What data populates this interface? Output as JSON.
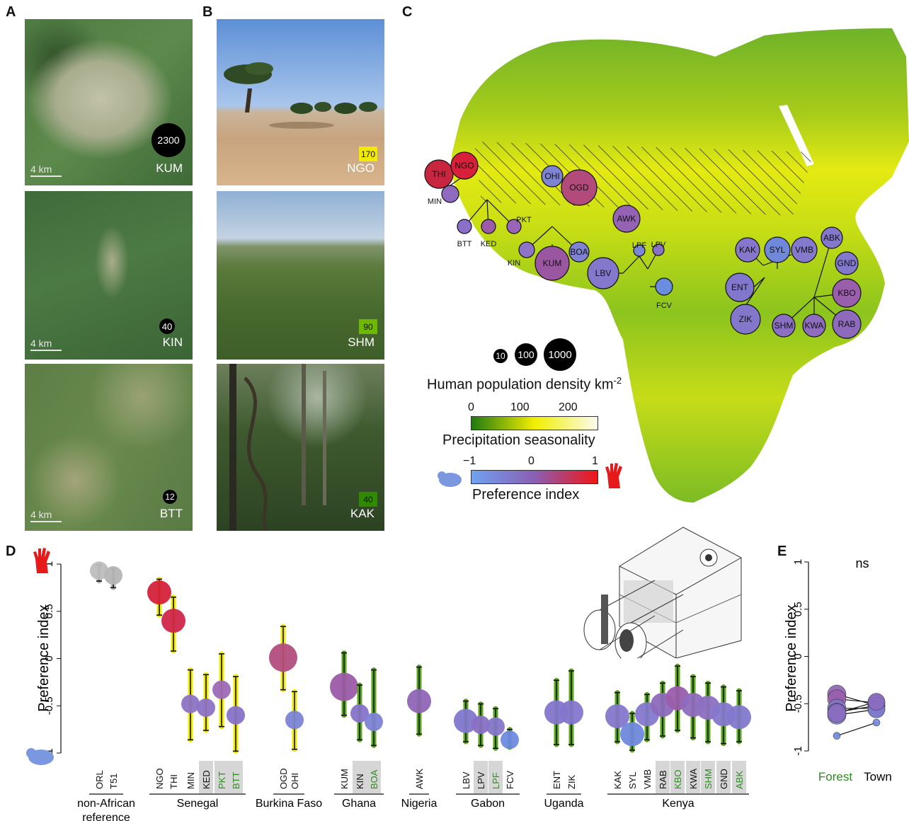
{
  "panels": {
    "a": "A",
    "b": "B",
    "c": "C",
    "d": "D",
    "e": "E"
  },
  "panel_a": {
    "photos": [
      {
        "site": "KUM",
        "density": "2300",
        "scale": "4 km"
      },
      {
        "site": "KIN",
        "density": "40",
        "scale": "4 km"
      },
      {
        "site": "BTT",
        "density": "12",
        "scale": "4 km"
      }
    ]
  },
  "panel_b": {
    "photos": [
      {
        "site": "NGO",
        "seasonality": "170",
        "color": "#f2ea00"
      },
      {
        "site": "SHM",
        "seasonality": "90",
        "color": "#6fb800"
      },
      {
        "site": "KAK",
        "seasonality": "40",
        "color": "#2f8a00"
      }
    ]
  },
  "panel_c": {
    "sites": [
      {
        "code": "THI",
        "color": "#c8263e"
      },
      {
        "code": "NGO",
        "color": "#d8203a"
      },
      {
        "code": "MIN",
        "color": "#8f6bc0"
      },
      {
        "code": "BTT",
        "color": "#8a70c8"
      },
      {
        "code": "KED",
        "color": "#9d5aa8"
      },
      {
        "code": "PKT",
        "color": "#9a65b8"
      },
      {
        "code": "OHI",
        "color": "#7f83d4"
      },
      {
        "code": "OGD",
        "color": "#b34a7c"
      },
      {
        "code": "KIN",
        "color": "#8d74c8"
      },
      {
        "code": "KUM",
        "color": "#9a56a0"
      },
      {
        "code": "BOA",
        "color": "#7f82d2"
      },
      {
        "code": "AWK",
        "color": "#9563b4"
      },
      {
        "code": "LPF",
        "color": "#7a86d8"
      },
      {
        "code": "LPV",
        "color": "#8a72c6"
      },
      {
        "code": "LBV",
        "color": "#8378cc"
      },
      {
        "code": "FCV",
        "color": "#6a8de0"
      },
      {
        "code": "KAK",
        "color": "#8677cc"
      },
      {
        "code": "SYL",
        "color": "#6f88da"
      },
      {
        "code": "VMB",
        "color": "#8479cc"
      },
      {
        "code": "ABK",
        "color": "#8378cc"
      },
      {
        "code": "GND",
        "color": "#8279ce"
      },
      {
        "code": "ENT",
        "color": "#8177cc"
      },
      {
        "code": "KBO",
        "color": "#9a5fac"
      },
      {
        "code": "ZIK",
        "color": "#8377cc"
      },
      {
        "code": "SHM",
        "color": "#8a6fc2"
      },
      {
        "code": "KWA",
        "color": "#8e6cbe"
      },
      {
        "code": "RAB",
        "color": "#8e6abc"
      }
    ],
    "density_legend": {
      "values": [
        "10",
        "100",
        "1000"
      ],
      "title": "Human population density km",
      "sup": "-2"
    },
    "seasonality_legend": {
      "ticks": [
        "0",
        "100",
        "200"
      ],
      "title": "Precipitation seasonality"
    },
    "preference_legend": {
      "ticks": [
        "−1",
        "0",
        "1"
      ],
      "title": "Preference index"
    }
  },
  "chart_data": [
    {
      "type": "scatter",
      "panel": "D",
      "ylabel": "Preference index",
      "ylim": [
        -1,
        1
      ],
      "yticks": [
        "1",
        "0.5",
        "0",
        "-0.5",
        "-1"
      ],
      "categories": [
        "ORL",
        "T51",
        "NGO",
        "THI",
        "MIN",
        "KED",
        "PKT",
        "BTT",
        "OGD",
        "OHI",
        "KUM",
        "KIN",
        "BOA",
        "AWK",
        "LBV",
        "LPV",
        "LPF",
        "FCV",
        "ENT",
        "ZIK",
        "KAK",
        "SYL",
        "VMB",
        "RAB",
        "KBO",
        "KWA",
        "SHM",
        "GND",
        "ABK"
      ],
      "values": [
        0.93,
        0.88,
        0.7,
        0.4,
        -0.48,
        -0.52,
        -0.33,
        -0.6,
        0.01,
        -0.65,
        -0.3,
        -0.58,
        -0.67,
        -0.45,
        -0.66,
        -0.7,
        -0.72,
        -0.86,
        -0.57,
        -0.57,
        -0.61,
        -0.8,
        -0.59,
        -0.49,
        -0.42,
        -0.49,
        -0.52,
        -0.59,
        -0.62
      ],
      "ci_low": [
        0.82,
        0.75,
        0.46,
        0.08,
        -0.86,
        -0.76,
        -0.72,
        -0.98,
        -0.33,
        -0.96,
        -0.6,
        -0.86,
        -0.92,
        -0.8,
        -0.88,
        -0.92,
        -0.95,
        -0.94,
        -0.91,
        -0.91,
        -0.88,
        -0.97,
        -0.86,
        -0.82,
        -0.76,
        -0.84,
        -0.88,
        -0.9,
        -0.88
      ],
      "ci_high": [
        0.99,
        0.95,
        0.84,
        0.65,
        -0.12,
        -0.17,
        0.05,
        -0.19,
        0.34,
        -0.35,
        0.06,
        -0.28,
        -0.12,
        -0.09,
        -0.45,
        -0.48,
        -0.53,
        -0.75,
        -0.23,
        -0.13,
        -0.36,
        -0.58,
        -0.38,
        -0.26,
        -0.08,
        -0.19,
        -0.26,
        -0.3,
        -0.34
      ],
      "colors": [
        "#bdbdbd",
        "#b5b5b5",
        "#d4213c",
        "#d0264a",
        "#8d73c6",
        "#8d72c5",
        "#9d69b8",
        "#8771c8",
        "#b24d7e",
        "#7c85d6",
        "#9c5ca8",
        "#8773c8",
        "#7e82d4",
        "#9065b6",
        "#8277cc",
        "#8970c4",
        "#8676c8",
        "#6f8ae0",
        "#8476cc",
        "#8576cc",
        "#8677cc",
        "#6f88dc",
        "#8479cc",
        "#8d6abc",
        "#9a5dac",
        "#8e6bbd",
        "#8d70c2",
        "#8478cc",
        "#8378cc"
      ],
      "sizes": [
        1,
        1,
        2,
        2,
        1,
        1,
        1,
        1,
        3,
        1,
        3,
        1,
        1,
        2,
        2,
        1,
        1,
        1,
        2,
        2,
        2,
        2,
        2,
        2,
        2,
        2,
        2,
        2,
        2
      ],
      "ci_colors": [
        "#bbbbbb",
        "#bbbbbb",
        "#f2ea00",
        "#f2ea00",
        "#f2ea00",
        "#f2ea00",
        "#f2ea00",
        "#f2ea00",
        "#f2ea00",
        "#f2ea00",
        "#5aa81a",
        "#5aa81a",
        "#5aa81a",
        "#5aa81a",
        "#5aa81a",
        "#5aa81a",
        "#5aa81a",
        "#5aa81a",
        "#5aa81a",
        "#5aa81a",
        "#5aa81a",
        "#5aa81a",
        "#5aa81a",
        "#5aa81a",
        "#5aa81a",
        "#5aa81a",
        "#5aa81a",
        "#5aa81a",
        "#5aa81a"
      ],
      "highlight": [
        "KED",
        "PKT",
        "BTT",
        "KIN",
        "BOA",
        "LPV",
        "LPF",
        "RAB",
        "KBO",
        "KWA",
        "SHM",
        "GND",
        "ABK"
      ],
      "green_labels": [
        "PKT",
        "BTT",
        "BOA",
        "LPF",
        "KBO",
        "SHM",
        "ABK"
      ],
      "groups": [
        {
          "name": "non-African\nreference",
          "from": "ORL",
          "to": "T51"
        },
        {
          "name": "Senegal",
          "from": "NGO",
          "to": "BTT"
        },
        {
          "name": "Burkina Faso",
          "from": "OGD",
          "to": "OHI"
        },
        {
          "name": "Ghana",
          "from": "KUM",
          "to": "BOA"
        },
        {
          "name": "Nigeria",
          "from": "AWK",
          "to": "AWK"
        },
        {
          "name": "Gabon",
          "from": "LBV",
          "to": "FCV"
        },
        {
          "name": "Uganda",
          "from": "ENT",
          "to": "ZIK"
        },
        {
          "name": "Kenya",
          "from": "KAK",
          "to": "ABK"
        }
      ]
    },
    {
      "type": "scatter",
      "panel": "E",
      "ylabel": "Preference index",
      "ylim": [
        -1,
        1
      ],
      "yticks": [
        "1",
        "0.5",
        "0",
        "-0.5",
        "-1"
      ],
      "categories": [
        "Forest",
        "Town"
      ],
      "annotation": "ns",
      "pairs": [
        {
          "forest": -0.4,
          "town": -0.52
        },
        {
          "forest": -0.45,
          "town": -0.49
        },
        {
          "forest": -0.55,
          "town": -0.55
        },
        {
          "forest": -0.59,
          "town": -0.52
        },
        {
          "forest": -0.62,
          "town": -0.56
        },
        {
          "forest": -0.6,
          "town": -0.48
        },
        {
          "forest": -0.84,
          "town": -0.7
        }
      ]
    }
  ]
}
